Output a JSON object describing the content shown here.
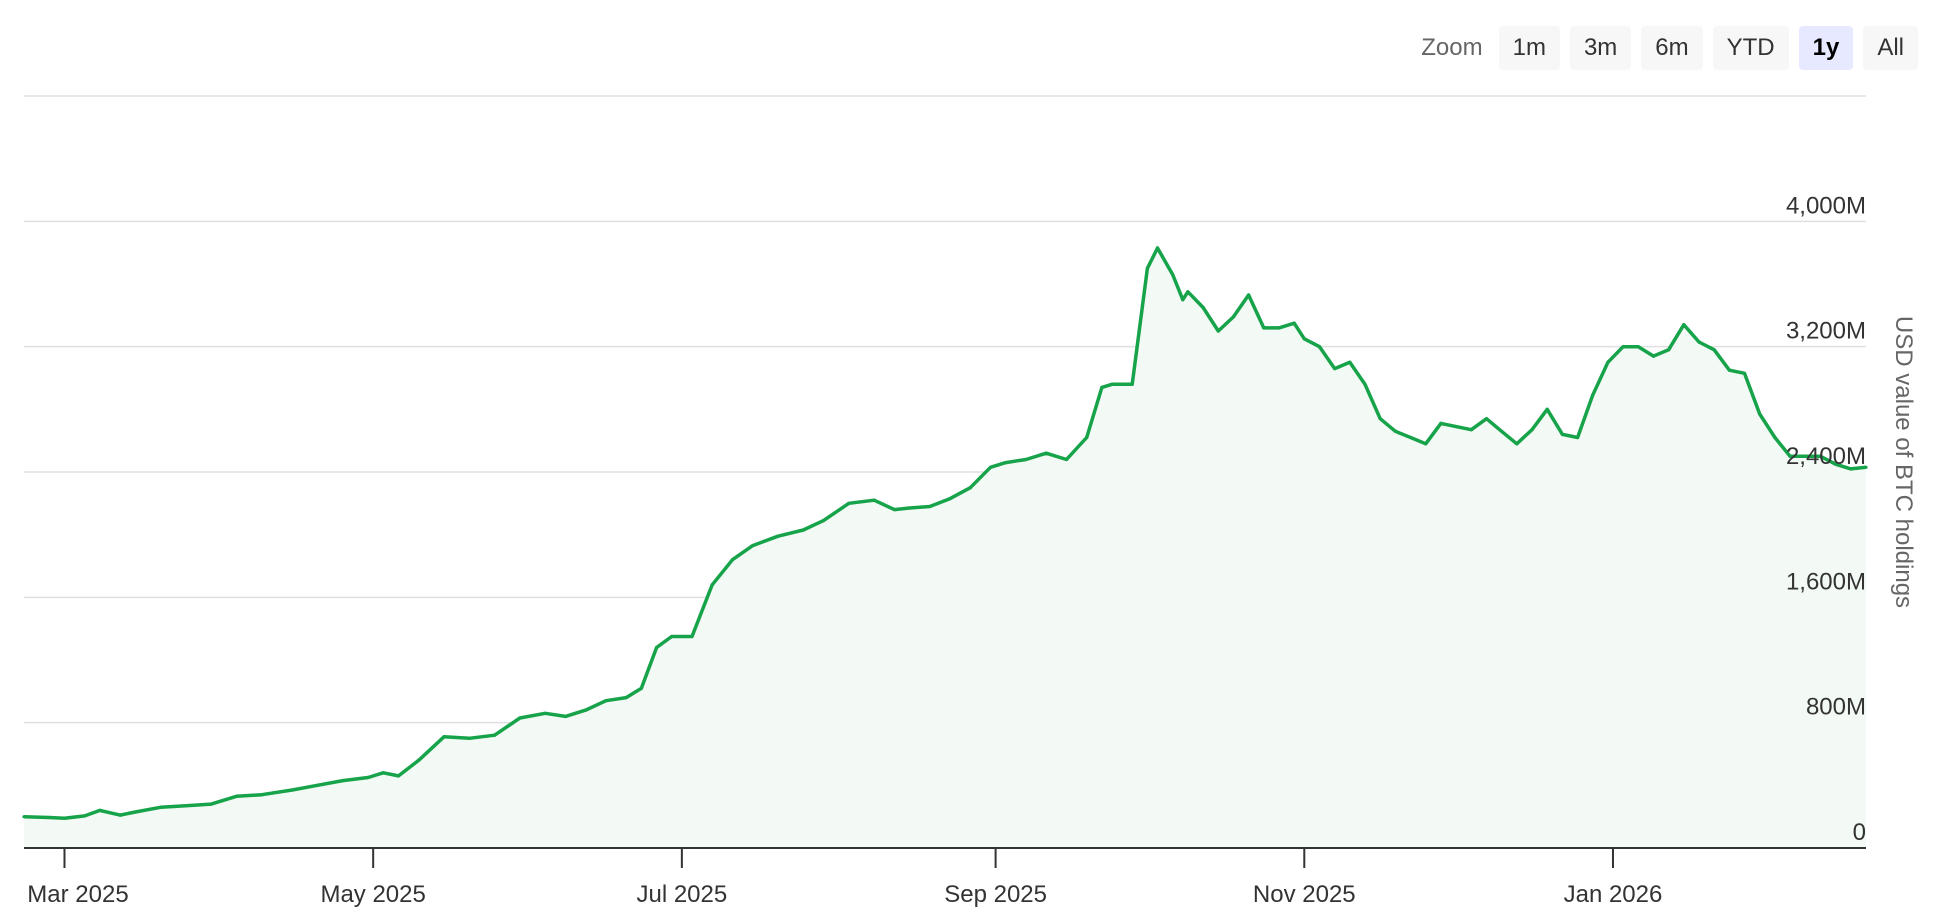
{
  "zoom": {
    "label": "Zoom",
    "buttons": [
      {
        "label": "1m",
        "active": false
      },
      {
        "label": "3m",
        "active": false
      },
      {
        "label": "6m",
        "active": false
      },
      {
        "label": "YTD",
        "active": false
      },
      {
        "label": "1y",
        "active": true
      },
      {
        "label": "All",
        "active": false
      }
    ]
  },
  "chart_data": {
    "type": "area",
    "title": "",
    "xlabel": "",
    "ylabel": "USD value of BTC holdings",
    "y_ticks": [
      {
        "value": 0,
        "label": "0"
      },
      {
        "value": 800,
        "label": "800M"
      },
      {
        "value": 1600,
        "label": "1,600M"
      },
      {
        "value": 2400,
        "label": "2,400M"
      },
      {
        "value": 3200,
        "label": "3,200M"
      },
      {
        "value": 4000,
        "label": "4,000M"
      }
    ],
    "ylim": [
      0,
      4800
    ],
    "xlim": [
      "2025-02-21",
      "2026-02-20"
    ],
    "x_ticks": [
      {
        "date": "2025-03-01",
        "label": "Mar 2025"
      },
      {
        "date": "2025-05-01",
        "label": "May 2025"
      },
      {
        "date": "2025-07-01",
        "label": "Jul 2025"
      },
      {
        "date": "2025-09-01",
        "label": "Sep 2025"
      },
      {
        "date": "2025-11-01",
        "label": "Nov 2025"
      },
      {
        "date": "2026-01-01",
        "label": "Jan 2026"
      }
    ],
    "grid": true,
    "line_color": "#16a34a",
    "fill_color": "#f3f9f4",
    "series": [
      {
        "x": [
          "2025-02-21",
          "2025-02-26",
          "2025-03-01",
          "2025-03-05",
          "2025-03-08",
          "2025-03-12",
          "2025-03-15",
          "2025-03-20",
          "2025-03-25",
          "2025-03-30",
          "2025-04-04",
          "2025-04-09",
          "2025-04-15",
          "2025-04-20",
          "2025-04-25",
          "2025-04-30",
          "2025-05-03",
          "2025-05-06",
          "2025-05-10",
          "2025-05-15",
          "2025-05-20",
          "2025-05-25",
          "2025-05-30",
          "2025-06-04",
          "2025-06-08",
          "2025-06-12",
          "2025-06-16",
          "2025-06-20",
          "2025-06-23",
          "2025-06-26",
          "2025-06-29",
          "2025-07-03",
          "2025-07-07",
          "2025-07-11",
          "2025-07-15",
          "2025-07-20",
          "2025-07-25",
          "2025-07-29",
          "2025-08-03",
          "2025-08-08",
          "2025-08-12",
          "2025-08-15",
          "2025-08-19",
          "2025-08-23",
          "2025-08-27",
          "2025-08-31",
          "2025-09-03",
          "2025-09-07",
          "2025-09-11",
          "2025-09-15",
          "2025-09-19",
          "2025-09-22",
          "2025-09-24",
          "2025-09-28",
          "2025-10-01",
          "2025-10-03",
          "2025-10-06",
          "2025-10-08",
          "2025-10-09",
          "2025-10-12",
          "2025-10-15",
          "2025-10-18",
          "2025-10-21",
          "2025-10-24",
          "2025-10-27",
          "2025-10-30",
          "2025-11-01",
          "2025-11-04",
          "2025-11-07",
          "2025-11-10",
          "2025-11-13",
          "2025-11-16",
          "2025-11-19",
          "2025-11-22",
          "2025-11-25",
          "2025-11-28",
          "2025-12-01",
          "2025-12-04",
          "2025-12-07",
          "2025-12-10",
          "2025-12-13",
          "2025-12-16",
          "2025-12-19",
          "2025-12-22",
          "2025-12-25",
          "2025-12-28",
          "2025-12-31",
          "2026-01-03",
          "2026-01-06",
          "2026-01-09",
          "2026-01-12",
          "2026-01-15",
          "2026-01-18",
          "2026-01-21",
          "2026-01-24",
          "2026-01-27",
          "2026-01-30",
          "2026-02-02",
          "2026-02-05",
          "2026-02-08",
          "2026-02-11",
          "2026-02-14",
          "2026-02-17",
          "2026-02-20"
        ],
        "values": [
          200,
          195,
          190,
          205,
          240,
          210,
          230,
          260,
          270,
          280,
          330,
          340,
          370,
          400,
          430,
          450,
          480,
          460,
          560,
          710,
          700,
          720,
          830,
          860,
          840,
          880,
          940,
          960,
          1020,
          1280,
          1350,
          1350,
          1680,
          1840,
          1930,
          1990,
          2030,
          2090,
          2200,
          2220,
          2160,
          2170,
          2180,
          2230,
          2300,
          2430,
          2460,
          2480,
          2520,
          2480,
          2620,
          2940,
          2960,
          2960,
          3700,
          3830,
          3660,
          3500,
          3550,
          3450,
          3300,
          3390,
          3530,
          3320,
          3320,
          3350,
          3250,
          3200,
          3060,
          3100,
          2960,
          2740,
          2660,
          2620,
          2580,
          2710,
          2690,
          2670,
          2740,
          2660,
          2580,
          2670,
          2800,
          2640,
          2620,
          2890,
          3100,
          3200,
          3200,
          3140,
          3180,
          3340,
          3230,
          3180,
          3050,
          3030,
          2770,
          2620,
          2500,
          2500,
          2500,
          2450,
          2420,
          2430
        ]
      }
    ]
  }
}
